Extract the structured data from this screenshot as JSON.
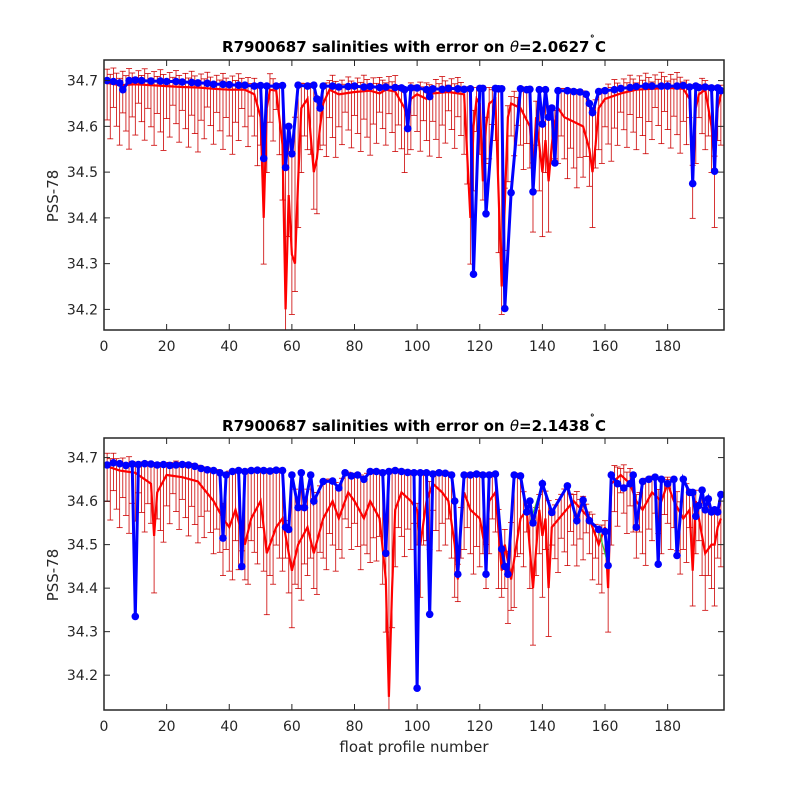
{
  "chart_data": [
    {
      "type": "line",
      "title": "R7900687 salinities with error on θ=2.0627˚C",
      "title_prefix": "R7900687 salinities with error on ",
      "theta_symbol": "θ",
      "theta_value": "=2.0627",
      "degree_mark": "˚",
      "unit_letter": "C",
      "xlabel": "",
      "ylabel": "PSS-78",
      "xlim": [
        0,
        198
      ],
      "ylim": [
        34.155,
        34.745
      ],
      "xticks": [
        0,
        20,
        40,
        60,
        80,
        100,
        120,
        140,
        160,
        180
      ],
      "yticks": [
        34.2,
        34.3,
        34.4,
        34.5,
        34.6,
        34.7
      ],
      "ytick_labels": [
        "34.2",
        "34.3",
        "34.4",
        "34.5",
        "34.6",
        "34.7"
      ],
      "grid": false,
      "colors": {
        "reference_line": "#ff0000",
        "error_bars": "#cc0000",
        "float_line": "#0000ff",
        "markers": "#0000ff"
      },
      "series": [
        {
          "role": "float salinity (blue markers)",
          "x": [
            1,
            3,
            5,
            6,
            8,
            10,
            12,
            15,
            18,
            20,
            23,
            25,
            28,
            30,
            33,
            35,
            38,
            40,
            43,
            45,
            48,
            50,
            51,
            52,
            55,
            57,
            58,
            59,
            60,
            62,
            65,
            67,
            68,
            69,
            70,
            73,
            75,
            78,
            80,
            83,
            85,
            88,
            90,
            93,
            95,
            96,
            97,
            98,
            100,
            103,
            104,
            105,
            108,
            110,
            113,
            115,
            117,
            118,
            120,
            121,
            122,
            125,
            126,
            127,
            128,
            130,
            133,
            135,
            136,
            137,
            139,
            140,
            141,
            142,
            143,
            144,
            145,
            148,
            150,
            152,
            154,
            155,
            156,
            158,
            160,
            163,
            165,
            168,
            170,
            173,
            175,
            178,
            180,
            183,
            185,
            187,
            188,
            189,
            190,
            192,
            194,
            195,
            196,
            197
          ],
          "y": [
            34.7,
            34.698,
            34.695,
            34.68,
            34.7,
            34.701,
            34.7,
            34.699,
            34.699,
            34.698,
            34.698,
            34.697,
            34.696,
            34.695,
            34.694,
            34.692,
            34.692,
            34.691,
            34.69,
            34.69,
            34.688,
            34.689,
            34.53,
            34.688,
            34.688,
            34.689,
            34.51,
            34.6,
            34.54,
            34.69,
            34.688,
            34.69,
            34.66,
            34.64,
            34.688,
            34.688,
            34.686,
            34.687,
            34.688,
            34.686,
            34.687,
            34.685,
            34.686,
            34.685,
            34.684,
            34.68,
            34.595,
            34.684,
            34.684,
            34.68,
            34.665,
            34.682,
            34.681,
            34.683,
            34.682,
            34.681,
            34.682,
            34.277,
            34.683,
            34.683,
            34.409,
            34.683,
            34.682,
            34.682,
            34.202,
            34.455,
            34.682,
            34.68,
            34.681,
            34.457,
            34.68,
            34.605,
            34.68,
            34.62,
            34.64,
            34.52,
            34.678,
            34.678,
            34.676,
            34.675,
            34.67,
            34.65,
            34.63,
            34.676,
            34.678,
            34.68,
            34.683,
            34.685,
            34.687,
            34.688,
            34.688,
            34.688,
            34.688,
            34.688,
            34.689,
            34.686,
            34.475,
            34.688,
            34.685,
            34.686,
            34.684,
            34.502,
            34.684,
            34.678
          ]
        },
        {
          "role": "mapped reference salinity (red line)",
          "x": [
            1,
            5,
            10,
            15,
            20,
            25,
            30,
            35,
            40,
            45,
            48,
            50,
            51,
            52,
            53,
            55,
            57,
            58,
            59,
            60,
            61,
            62,
            63,
            65,
            67,
            68,
            69,
            70,
            72,
            75,
            80,
            85,
            88,
            90,
            93,
            96,
            97,
            98,
            100,
            103,
            105,
            110,
            115,
            117,
            118,
            119,
            120,
            121,
            122,
            123,
            125,
            127,
            128,
            129,
            130,
            133,
            136,
            137,
            138,
            140,
            141,
            142,
            143,
            144,
            145,
            147,
            150,
            153,
            155,
            156,
            157,
            158,
            160,
            165,
            170,
            175,
            180,
            185,
            187,
            188,
            189,
            190,
            192,
            194,
            195,
            196,
            197
          ],
          "y": [
            34.695,
            34.69,
            34.692,
            34.69,
            34.688,
            34.686,
            34.685,
            34.682,
            34.68,
            34.68,
            34.67,
            34.62,
            34.4,
            34.64,
            34.68,
            34.678,
            34.56,
            34.2,
            34.45,
            34.32,
            34.3,
            34.48,
            34.64,
            34.66,
            34.5,
            34.53,
            34.6,
            34.65,
            34.68,
            34.67,
            34.675,
            34.678,
            34.672,
            34.68,
            34.676,
            34.64,
            34.61,
            34.66,
            34.67,
            34.66,
            34.672,
            34.675,
            34.67,
            34.4,
            34.6,
            34.66,
            34.65,
            34.48,
            34.6,
            34.65,
            34.66,
            34.25,
            34.43,
            34.62,
            34.65,
            34.64,
            34.6,
            34.5,
            34.62,
            34.5,
            34.57,
            34.48,
            34.56,
            34.61,
            34.64,
            34.62,
            34.61,
            34.6,
            34.55,
            34.5,
            34.56,
            34.64,
            34.66,
            34.672,
            34.68,
            34.682,
            34.684,
            34.682,
            34.66,
            34.48,
            34.64,
            34.67,
            34.68,
            34.6,
            34.52,
            34.64,
            34.67
          ]
        }
      ]
    },
    {
      "type": "line",
      "title": "R7900687 salinities with error on θ=2.1438˚C",
      "title_prefix": "R7900687 salinities with error on ",
      "theta_symbol": "θ",
      "theta_value": "=2.1438",
      "degree_mark": "˚",
      "unit_letter": "C",
      "xlabel": "float profile number",
      "ylabel": "PSS-78",
      "xlim": [
        0,
        198
      ],
      "ylim": [
        34.12,
        34.745
      ],
      "xticks": [
        0,
        20,
        40,
        60,
        80,
        100,
        120,
        140,
        160,
        180
      ],
      "yticks": [
        34.2,
        34.3,
        34.4,
        34.5,
        34.6,
        34.7
      ],
      "ytick_labels": [
        "34.2",
        "34.3",
        "34.4",
        "34.5",
        "34.6",
        "34.7"
      ],
      "grid": false,
      "colors": {
        "reference_line": "#ff0000",
        "error_bars": "#cc0000",
        "float_line": "#0000ff",
        "markers": "#0000ff",
        "gap_line": "#33cc33"
      },
      "series": [
        {
          "role": "float salinity (blue markers)",
          "x": [
            1,
            3,
            5,
            7,
            9,
            10,
            11,
            13,
            15,
            17,
            19,
            21,
            23,
            25,
            27,
            29,
            31,
            33,
            35,
            37,
            38,
            39,
            41,
            43,
            44,
            45,
            47,
            49,
            51,
            53,
            55,
            57,
            58,
            59,
            60,
            62,
            63,
            64,
            66,
            67,
            70,
            73,
            75,
            77,
            79,
            81,
            83,
            85,
            87,
            89,
            90,
            91,
            93,
            95,
            97,
            99,
            100,
            101,
            103,
            104,
            105,
            107,
            109,
            111,
            112,
            113,
            115,
            117,
            119,
            121,
            122,
            123,
            125,
            127,
            128,
            129,
            131,
            133,
            135,
            136,
            137,
            140,
            143,
            148,
            151,
            153,
            155,
            158,
            160,
            161,
            162,
            164,
            166,
            168,
            169,
            170,
            172,
            174,
            176,
            177,
            178,
            180,
            182,
            183,
            185,
            187,
            188,
            189,
            190,
            191,
            192,
            193,
            194,
            195,
            196,
            197
          ],
          "y": [
            34.683,
            34.688,
            34.686,
            34.682,
            34.685,
            34.335,
            34.684,
            34.686,
            34.685,
            34.683,
            34.684,
            34.682,
            34.683,
            34.684,
            34.683,
            34.68,
            34.675,
            34.672,
            34.67,
            34.665,
            34.515,
            34.66,
            34.668,
            34.67,
            34.45,
            34.668,
            34.67,
            34.671,
            34.67,
            34.669,
            34.671,
            34.67,
            34.54,
            34.535,
            34.66,
            34.585,
            34.665,
            34.585,
            34.66,
            34.6,
            34.645,
            34.646,
            34.63,
            34.665,
            34.658,
            34.66,
            34.65,
            34.668,
            34.668,
            34.665,
            34.48,
            34.668,
            34.67,
            34.668,
            34.666,
            34.665,
            34.17,
            34.665,
            34.665,
            34.34,
            34.662,
            34.665,
            34.664,
            34.66,
            34.6,
            34.432,
            34.66,
            34.66,
            34.662,
            34.66,
            34.432,
            34.66,
            34.662,
            34.49,
            34.45,
            34.432,
            34.66,
            34.658,
            34.575,
            34.6,
            34.55,
            34.64,
            34.574,
            34.635,
            34.555,
            34.602,
            34.555,
            34.535,
            34.53,
            34.452,
            34.66,
            34.64,
            34.63,
            34.64,
            34.66,
            34.54,
            34.645,
            34.65,
            34.655,
            34.455,
            34.65,
            34.64,
            34.65,
            34.475,
            34.65,
            34.62,
            34.62,
            34.565,
            34.59,
            34.625,
            34.58,
            34.605,
            34.575,
            34.58,
            34.575,
            34.615
          ]
        },
        {
          "role": "mapped reference salinity (red line)",
          "x": [
            1,
            5,
            10,
            15,
            16,
            17,
            20,
            25,
            30,
            35,
            38,
            40,
            42,
            45,
            47,
            50,
            52,
            55,
            57,
            60,
            62,
            65,
            67,
            70,
            73,
            75,
            78,
            80,
            83,
            85,
            88,
            90,
            91,
            92,
            93,
            95,
            98,
            100,
            101,
            103,
            105,
            108,
            110,
            112,
            113,
            114,
            115,
            117,
            120,
            122,
            123,
            125,
            127,
            128,
            130,
            133,
            135,
            137,
            139,
            140,
            141,
            142,
            143,
            150,
            155,
            158,
            160,
            161,
            162,
            165,
            168,
            170,
            172,
            175,
            178,
            180,
            182,
            185,
            187,
            188,
            189,
            190,
            192,
            194,
            195,
            196,
            197
          ],
          "y": [
            34.68,
            34.67,
            34.665,
            34.64,
            34.52,
            34.62,
            34.66,
            34.655,
            34.645,
            34.6,
            34.56,
            34.54,
            34.58,
            34.5,
            34.56,
            34.6,
            34.48,
            34.54,
            34.56,
            34.44,
            34.5,
            34.54,
            34.48,
            34.56,
            34.6,
            34.56,
            34.62,
            34.6,
            34.56,
            34.6,
            34.56,
            34.42,
            34.15,
            34.4,
            34.58,
            34.62,
            34.6,
            34.58,
            34.5,
            34.6,
            34.64,
            34.62,
            34.6,
            34.5,
            34.42,
            34.56,
            34.62,
            34.58,
            34.56,
            34.48,
            34.6,
            34.62,
            34.44,
            34.5,
            34.42,
            34.56,
            34.58,
            34.4,
            34.58,
            34.52,
            34.56,
            34.4,
            34.54,
            34.6,
            34.56,
            34.5,
            34.54,
            34.4,
            34.64,
            34.66,
            34.64,
            34.6,
            34.58,
            34.62,
            34.6,
            34.64,
            34.6,
            34.56,
            34.58,
            34.44,
            34.6,
            34.56,
            34.48,
            34.5,
            34.5,
            34.54,
            34.56
          ]
        }
      ]
    }
  ]
}
